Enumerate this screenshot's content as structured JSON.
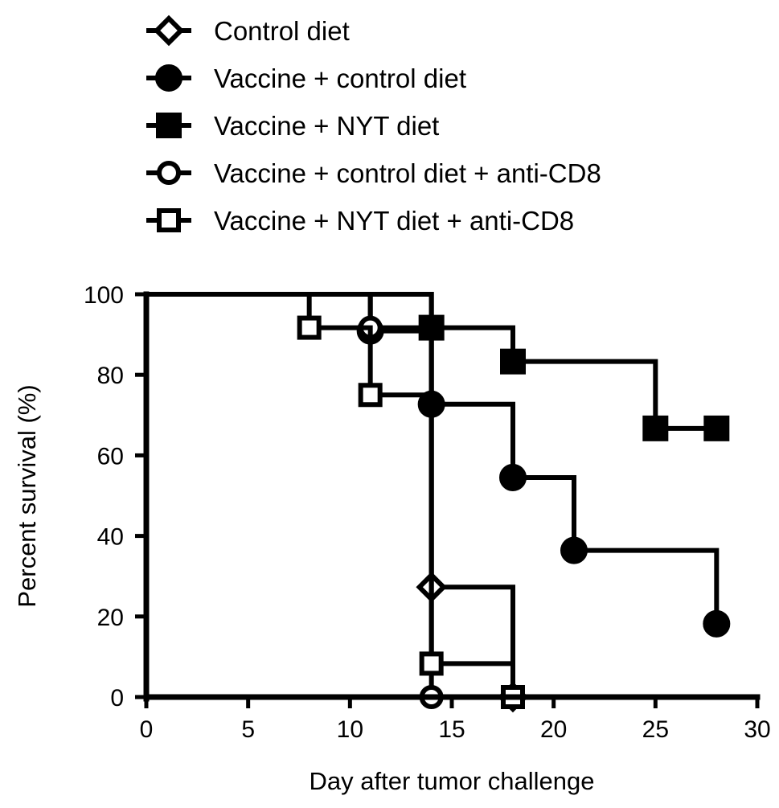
{
  "chart_data": {
    "type": "line",
    "subtype": "kaplan-meier-step",
    "title": "",
    "xlabel": "Day after tumor challenge",
    "ylabel": "Percent survival (%)",
    "xlim": [
      0,
      30
    ],
    "ylim": [
      0,
      100
    ],
    "xticks": [
      0,
      5,
      10,
      15,
      20,
      25,
      30
    ],
    "yticks": [
      0,
      20,
      40,
      60,
      80,
      100
    ],
    "grid": false,
    "legend_position": "top",
    "series": [
      {
        "name": "Control diet",
        "marker": "open-diamond",
        "steps": [
          [
            0,
            100
          ],
          [
            14,
            27.3
          ],
          [
            18,
            0
          ]
        ],
        "markers": [
          [
            14,
            27.3
          ],
          [
            18,
            0
          ]
        ]
      },
      {
        "name": "Vaccine + control diet",
        "marker": "filled-circle",
        "steps": [
          [
            0,
            100
          ],
          [
            11,
            90.9
          ],
          [
            14,
            72.7
          ],
          [
            18,
            54.5
          ],
          [
            21,
            36.4
          ],
          [
            28,
            18.2
          ]
        ],
        "markers": [
          [
            11,
            90.9
          ],
          [
            14,
            72.7
          ],
          [
            18,
            54.5
          ],
          [
            21,
            36.4
          ],
          [
            28,
            18.2
          ]
        ]
      },
      {
        "name": "Vaccine + NYT diet",
        "marker": "filled-square",
        "steps": [
          [
            0,
            100
          ],
          [
            14,
            91.7
          ],
          [
            18,
            83.3
          ],
          [
            25,
            66.7
          ],
          [
            28,
            66.7
          ]
        ],
        "markers": [
          [
            14,
            91.7
          ],
          [
            18,
            83.3
          ],
          [
            25,
            66.7
          ],
          [
            28,
            66.7
          ]
        ]
      },
      {
        "name": "Vaccine + control diet + anti-CD8",
        "marker": "open-circle",
        "steps": [
          [
            0,
            100
          ],
          [
            11,
            91.7
          ],
          [
            14,
            0
          ]
        ],
        "markers": [
          [
            11,
            91.7
          ],
          [
            14,
            0
          ]
        ]
      },
      {
        "name": "Vaccine + NYT diet + anti-CD8",
        "marker": "open-square",
        "steps": [
          [
            0,
            100
          ],
          [
            8,
            91.7
          ],
          [
            11,
            75
          ],
          [
            14,
            8.3
          ],
          [
            18,
            0
          ]
        ],
        "markers": [
          [
            8,
            91.7
          ],
          [
            11,
            75
          ],
          [
            14,
            8.3
          ],
          [
            18,
            0
          ]
        ]
      }
    ]
  }
}
